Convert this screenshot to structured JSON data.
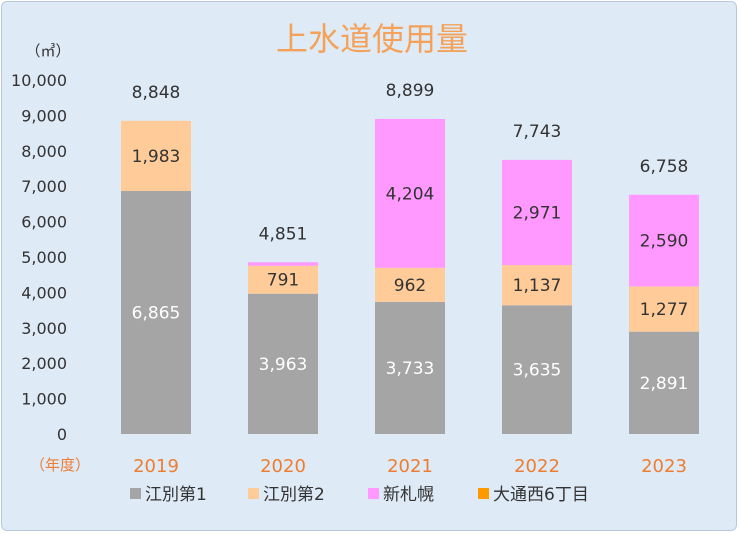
{
  "chart_data": {
    "type": "bar",
    "stacked": true,
    "title": "上水道使用量",
    "y_unit": "（㎥）",
    "x_unit": "（年度）",
    "ylim": [
      0,
      10000
    ],
    "y_ticks": [
      "0",
      "1,000",
      "2,000",
      "3,000",
      "4,000",
      "5,000",
      "6,000",
      "7,000",
      "8,000",
      "9,000",
      "10,000"
    ],
    "y_tick_values": [
      0,
      1000,
      2000,
      3000,
      4000,
      5000,
      6000,
      7000,
      8000,
      9000,
      10000
    ],
    "categories": [
      "2019",
      "2020",
      "2021",
      "2022",
      "2023"
    ],
    "series": [
      {
        "name": "江別第1",
        "color": "#a5a5a5",
        "label_color": "#ffffff",
        "values": [
          6865,
          3963,
          3733,
          3635,
          2891
        ],
        "labels": [
          "6,865",
          "3,963",
          "3,733",
          "3,635",
          "2,891"
        ]
      },
      {
        "name": "江別第2",
        "color": "#ffcc99",
        "label_color": "#333333",
        "values": [
          1983,
          791,
          962,
          1137,
          1277
        ],
        "labels": [
          "1,983",
          "791",
          "962",
          "1,137",
          "1,277"
        ]
      },
      {
        "name": "新札幌",
        "color": "#ff99ff",
        "label_color": "#333333",
        "values": [
          0,
          97,
          4204,
          2971,
          2590
        ],
        "labels": [
          "",
          "",
          "4,204",
          "2,971",
          "2,590"
        ]
      },
      {
        "name": "大通西6丁目",
        "color": "#ff9900",
        "label_color": "#333333",
        "values": [
          0,
          0,
          0,
          0,
          0
        ],
        "labels": [
          "",
          "",
          "",
          "",
          ""
        ]
      }
    ],
    "totals": [
      "8,848",
      "4,851",
      "8,899",
      "7,743",
      "6,758"
    ],
    "total_values": [
      8848,
      4851,
      8899,
      7743,
      6758
    ],
    "legend_position": "bottom",
    "grid": false
  }
}
